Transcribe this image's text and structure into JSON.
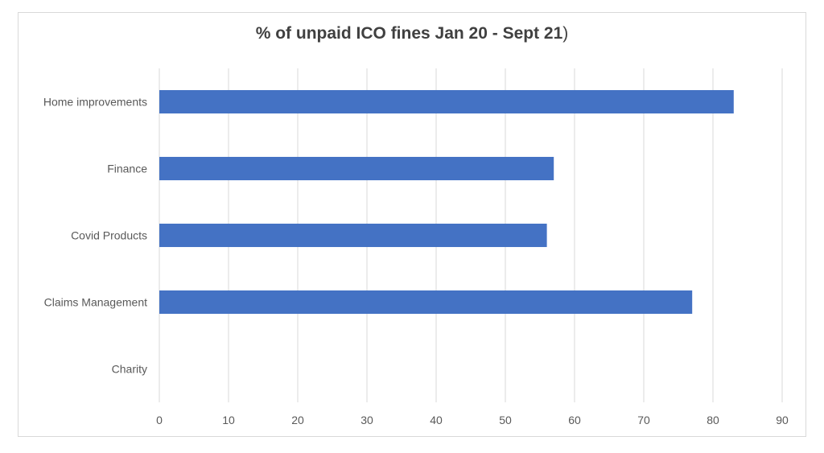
{
  "chart_data": {
    "type": "bar",
    "orientation": "horizontal",
    "title": "% of unpaid ICO fines Jan 20 - Sept 21)",
    "title_bold": "% of unpaid ICO fines Jan 20 - Sept 21",
    "title_tail": ")",
    "categories": [
      "Home improvements",
      "Finance",
      "Covid Products",
      "Claims Management",
      "Charity"
    ],
    "values": [
      83,
      57,
      56,
      77,
      0
    ],
    "xlabel": "",
    "ylabel": "",
    "xlim": [
      0,
      90
    ],
    "xticks": [
      0,
      10,
      20,
      30,
      40,
      50,
      60,
      70,
      80,
      90
    ],
    "grid": true,
    "legend": "none",
    "bar_color": "#4472c4",
    "grid_color": "#d9d9d9",
    "text_color": "#595959"
  }
}
